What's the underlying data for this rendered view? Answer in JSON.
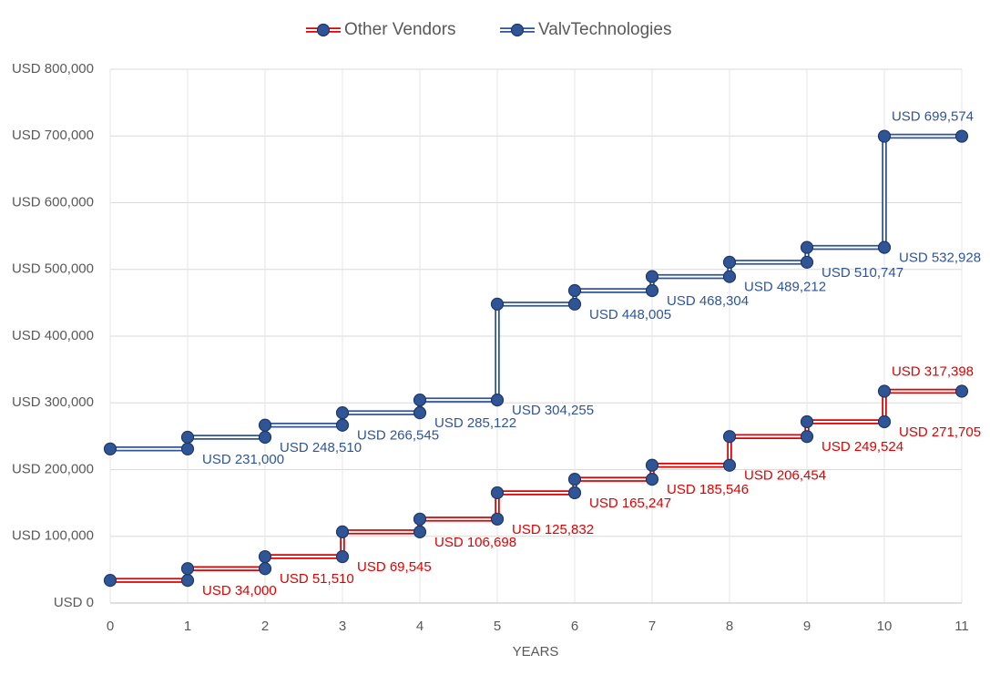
{
  "chart_data": {
    "type": "step",
    "x_label": "YEARS",
    "x": [
      0,
      1,
      2,
      3,
      4,
      5,
      6,
      7,
      8,
      9,
      10
    ],
    "step": "post",
    "xlim": [
      0,
      11
    ],
    "xticks": [
      0,
      1,
      2,
      3,
      4,
      5,
      6,
      7,
      8,
      9,
      10,
      11
    ],
    "ylim": [
      0,
      800000
    ],
    "yticks": [
      {
        "value": 0,
        "label": "USD 0"
      },
      {
        "value": 100000,
        "label": "USD 100,000"
      },
      {
        "value": 200000,
        "label": "USD 200,000"
      },
      {
        "value": 300000,
        "label": "USD 300,000"
      },
      {
        "value": 400000,
        "label": "USD 400,000"
      },
      {
        "value": 500000,
        "label": "USD 500,000"
      },
      {
        "value": 600000,
        "label": "USD 600,000"
      },
      {
        "value": 700000,
        "label": "USD 700,000"
      },
      {
        "value": 800000,
        "label": "USD 800,000"
      }
    ],
    "grid": true,
    "legend": "top",
    "marker_color": "#2f5597",
    "series": [
      {
        "name": "Other Vendors",
        "color": "#e00000",
        "values": [
          34000,
          51510,
          69545,
          106698,
          125832,
          165247,
          185546,
          206454,
          249524,
          271705,
          317398
        ],
        "value_labels": [
          "USD 34,000",
          "USD 51,510",
          "USD 69,545",
          "USD 106,698",
          "USD 125,832",
          "USD 165,247",
          "USD 185,546",
          "USD 206,454",
          "USD 249,524",
          "USD 271,705",
          "USD 317,398"
        ]
      },
      {
        "name": "ValvTechnologies",
        "color": "#2f5597",
        "values": [
          231000,
          248510,
          266545,
          285122,
          304255,
          448005,
          468304,
          489212,
          510747,
          532928,
          699574
        ],
        "value_labels": [
          "USD 231,000",
          "USD 248,510",
          "USD 266,545",
          "USD 285,122",
          "USD 304,255",
          "USD 448,005",
          "USD 468,304",
          "USD 489,212",
          "USD 510,747",
          "USD 532,928",
          "USD 699,574"
        ]
      }
    ]
  }
}
